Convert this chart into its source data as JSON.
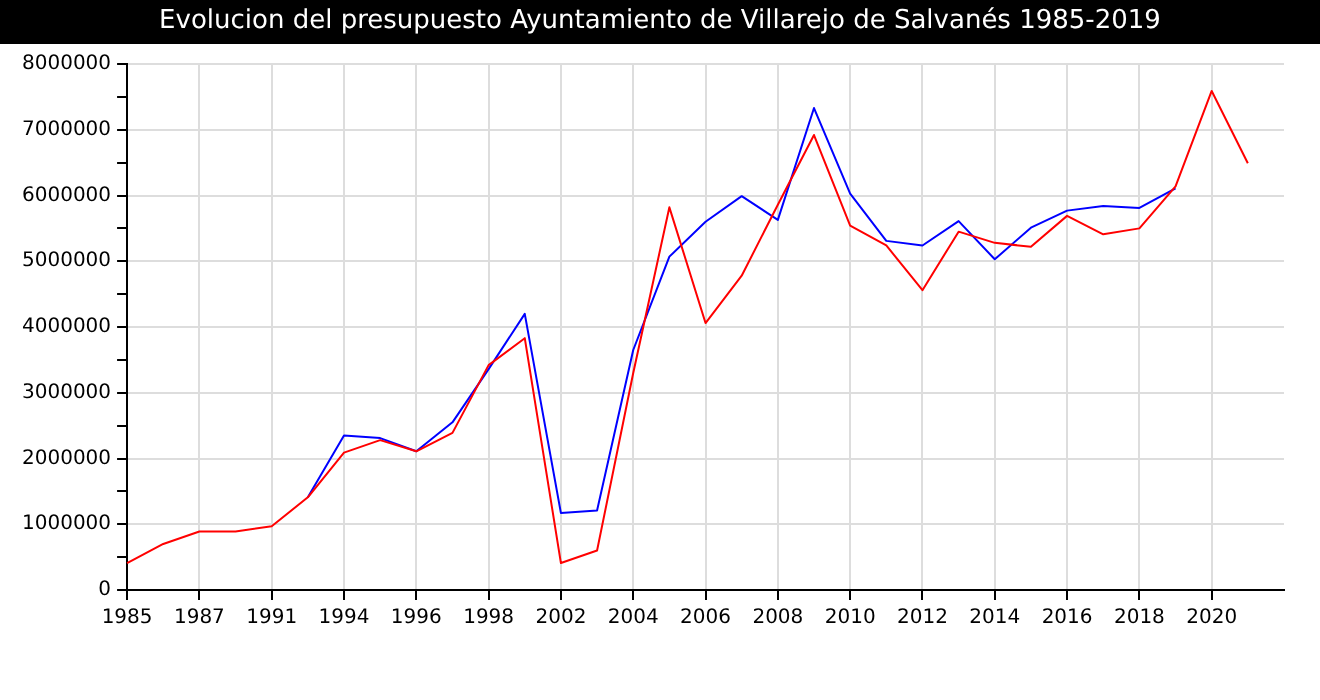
{
  "chart_data": {
    "type": "line",
    "title": "Evolucion del presupuesto Ayuntamiento de Villarejo de Salvanés 1985-2019",
    "categories": [
      "1985",
      null,
      "1987",
      null,
      "1991",
      null,
      "1994",
      null,
      "1996",
      null,
      "1998",
      null,
      "2002",
      null,
      "2004",
      null,
      "2006",
      null,
      "2008",
      null,
      "2010",
      null,
      "2012",
      null,
      "2014",
      null,
      "2016",
      null,
      "2018",
      null,
      "2020",
      null,
      null
    ],
    "series": [
      {
        "color": "#0000ff",
        "values": [
          null,
          null,
          null,
          null,
          null,
          1410000,
          2350000,
          2310000,
          2110000,
          2550000,
          3360000,
          4200000,
          1170000,
          1210000,
          3650000,
          5070000,
          5600000,
          5990000,
          5630000,
          7330000,
          6030000,
          5310000,
          5240000,
          5610000,
          5030000,
          5510000,
          5770000,
          5840000,
          5810000,
          6110000,
          null,
          null,
          null
        ]
      },
      {
        "color": "#ff0000",
        "values": [
          410000,
          700000,
          890000,
          890000,
          970000,
          1410000,
          2090000,
          2280000,
          2110000,
          2390000,
          3420000,
          3830000,
          410000,
          600000,
          3300000,
          5820000,
          4060000,
          4780000,
          5860000,
          6920000,
          5540000,
          5240000,
          4560000,
          5450000,
          5280000,
          5220000,
          5690000,
          5410000,
          5500000,
          6140000,
          7590000,
          6490000,
          null
        ]
      }
    ],
    "ylim": [
      0,
      8000000
    ],
    "yticks": [
      0,
      {
        "value": 500000,
        "label": null
      },
      1000000,
      {
        "value": 1500000,
        "label": null
      },
      2000000,
      {
        "value": 2500000,
        "label": null
      },
      3000000,
      {
        "value": 3500000,
        "label": null
      },
      4000000,
      {
        "value": 4500000,
        "label": null
      },
      5000000,
      {
        "value": 5500000,
        "label": null
      },
      6000000,
      {
        "value": 6500000,
        "label": null
      },
      7000000,
      {
        "value": 7500000,
        "label": null
      },
      8000000
    ],
    "grid": true,
    "marker": "none",
    "line_style": "solid",
    "legend": false
  }
}
